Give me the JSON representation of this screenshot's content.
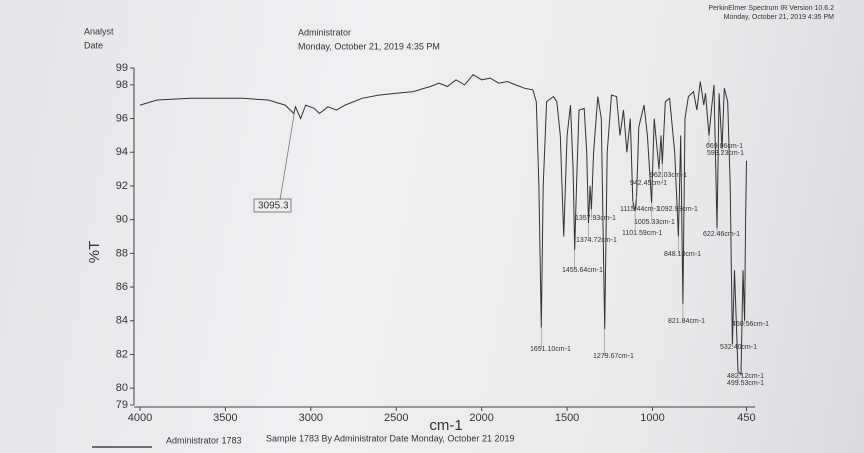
{
  "header": {
    "analyst_label": "Analyst",
    "date_label": "Date",
    "analyst": "Administrator",
    "date": "Monday, October 21, 2019 4:35 PM",
    "software": "PerkinElmer Spectrum IR Version 10.6.2",
    "software_date": "Monday, October 21, 2019 4:35 PM"
  },
  "footer": {
    "user": "Administrator 1783",
    "sample": "Sample 1783 By Administrator Date Monday, October 21 2019"
  },
  "chart_data": {
    "type": "line",
    "xlabel": "cm-1",
    "ylabel": "%T",
    "color": "#333333",
    "xlim": [
      4000,
      400
    ],
    "ylim": [
      79,
      99
    ],
    "xticks": [
      4000,
      3500,
      3000,
      2500,
      2000,
      1500,
      1000,
      450
    ],
    "yticks": [
      79,
      80,
      82,
      84,
      86,
      88,
      90,
      92,
      94,
      96,
      98,
      99
    ],
    "x": [
      4000,
      3900,
      3700,
      3400,
      3250,
      3150,
      3100,
      3090,
      3060,
      3030,
      2980,
      2950,
      2900,
      2850,
      2800,
      2700,
      2600,
      2500,
      2400,
      2300,
      2250,
      2200,
      2150,
      2100,
      2050,
      2000,
      1950,
      1900,
      1850,
      1800,
      1750,
      1700,
      1680,
      1665,
      1651.1,
      1640,
      1620,
      1580,
      1560,
      1540,
      1520,
      1500,
      1480,
      1465,
      1455.6,
      1445,
      1430,
      1400,
      1385,
      1374.7,
      1365,
      1357.9,
      1345,
      1320,
      1300,
      1279.7,
      1265,
      1240,
      1210,
      1190,
      1170,
      1150,
      1130,
      1115.4,
      1101.6,
      1092.9,
      1080,
      1050,
      1030,
      1005.3,
      990,
      962,
      950,
      942.5,
      925,
      900,
      870,
      848.1,
      835,
      821.8,
      810,
      790,
      760,
      740,
      720,
      700,
      690,
      669.1,
      655,
      640,
      622.5,
      610,
      593.2,
      580,
      560,
      545,
      532.4,
      520,
      499.5,
      482.1,
      470,
      460.6,
      455,
      450
    ],
    "values": [
      96.8,
      97.1,
      97.2,
      97.2,
      97.1,
      96.8,
      96.3,
      96.7,
      96.0,
      96.8,
      96.6,
      96.3,
      96.7,
      96.5,
      96.8,
      97.2,
      97.4,
      97.5,
      97.6,
      97.9,
      98.1,
      97.9,
      98.3,
      98.0,
      98.6,
      98.3,
      98.4,
      98.1,
      98.2,
      98.0,
      97.8,
      97.7,
      97.0,
      92,
      83.6,
      92,
      97.0,
      97.3,
      97.0,
      95,
      89,
      95,
      96.8,
      93,
      88.2,
      92,
      96.5,
      96.6,
      94,
      89.8,
      92,
      90.6,
      94,
      97.3,
      96,
      83.5,
      94,
      97.4,
      97.3,
      95,
      96.5,
      94,
      96,
      91.1,
      90.5,
      91.4,
      95.5,
      96.8,
      95,
      91.0,
      96,
      93.0,
      95,
      93.3,
      97,
      97.2,
      94,
      89.0,
      95,
      85.0,
      96,
      97.3,
      97.6,
      96.5,
      98.2,
      96.8,
      97.5,
      95.0,
      96.5,
      98,
      89.5,
      97.5,
      94.2,
      97.8,
      97.0,
      92,
      82.6,
      87,
      81.0,
      80.8,
      87,
      84.0,
      90,
      93.5
    ],
    "annotations": [
      {
        "text": "3095.3",
        "x": 3095.3,
        "y": 96.4
      },
      {
        "text": "1651.10cm-1",
        "x": 1651.1,
        "y": 83.6
      },
      {
        "text": "1279.67cm-1",
        "x": 1279.67,
        "y": 83.5
      },
      {
        "text": "1455.64cm-1",
        "x": 1455.64,
        "y": 88.2
      },
      {
        "text": "1374.72cm-1",
        "x": 1374.72,
        "y": 89.8
      },
      {
        "text": "1357.93cm-1",
        "x": 1357.93,
        "y": 90.6
      },
      {
        "text": "1115.44cm-1",
        "x": 1115.44,
        "y": 91.1
      },
      {
        "text": "1092.93cm-1",
        "x": 1092.93,
        "y": 91.4
      },
      {
        "text": "1005.33cm-1",
        "x": 1005.33,
        "y": 91.0
      },
      {
        "text": "1101.59cm-1",
        "x": 1101.59,
        "y": 90.5
      },
      {
        "text": "962.03cm-1",
        "x": 962.03,
        "y": 93.0
      },
      {
        "text": "942.45cm-1",
        "x": 942.45,
        "y": 93.3
      },
      {
        "text": "848.10cm-1",
        "x": 848.1,
        "y": 89.0
      },
      {
        "text": "821.84cm-1",
        "x": 821.84,
        "y": 85.0
      },
      {
        "text": "669.06cm-1",
        "x": 669.06,
        "y": 95.0
      },
      {
        "text": "593.23cm-1",
        "x": 593.23,
        "y": 94.2
      },
      {
        "text": "622.46cm-1",
        "x": 622.46,
        "y": 89.5
      },
      {
        "text": "460.56cm-1",
        "x": 460.56,
        "y": 84.0
      },
      {
        "text": "532.40cm-1",
        "x": 532.4,
        "y": 82.6
      },
      {
        "text": "482.12cm-1",
        "x": 482.12,
        "y": 80.8
      },
      {
        "text": "499.53cm-1",
        "x": 499.53,
        "y": 81.0
      }
    ]
  }
}
